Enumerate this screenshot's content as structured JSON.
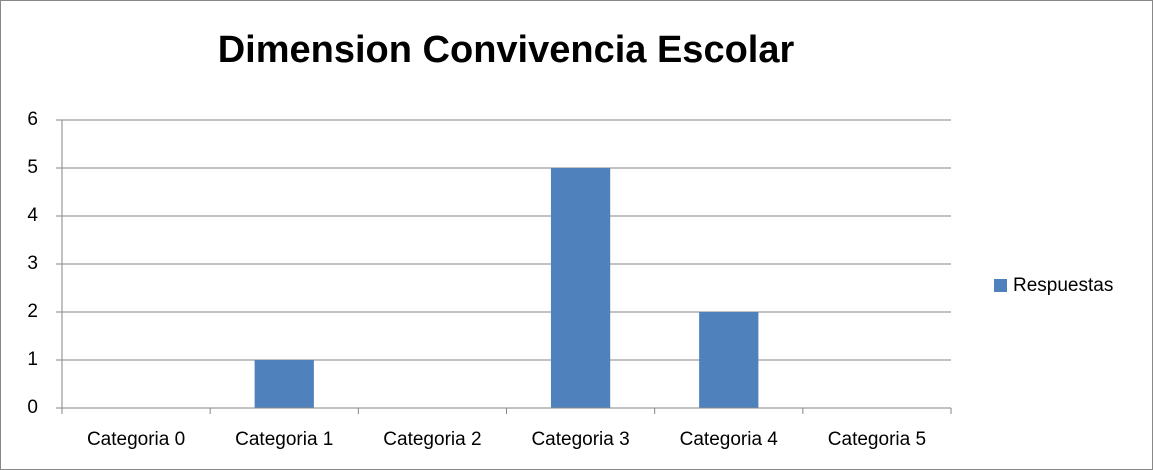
{
  "chart_data": {
    "type": "bar",
    "title": "Dimension Convivencia Escolar",
    "categories": [
      "Categoria 0",
      "Categoria 1",
      "Categoria 2",
      "Categoria 3",
      "Categoria 4",
      "Categoria 5"
    ],
    "series": [
      {
        "name": "Respuestas",
        "color": "#4f81bd",
        "values": [
          0,
          1,
          0,
          5,
          2,
          0
        ]
      }
    ],
    "ylim": [
      0,
      6
    ],
    "yticks": [
      0,
      1,
      2,
      3,
      4,
      5,
      6
    ],
    "grid": true,
    "legend": "right"
  }
}
